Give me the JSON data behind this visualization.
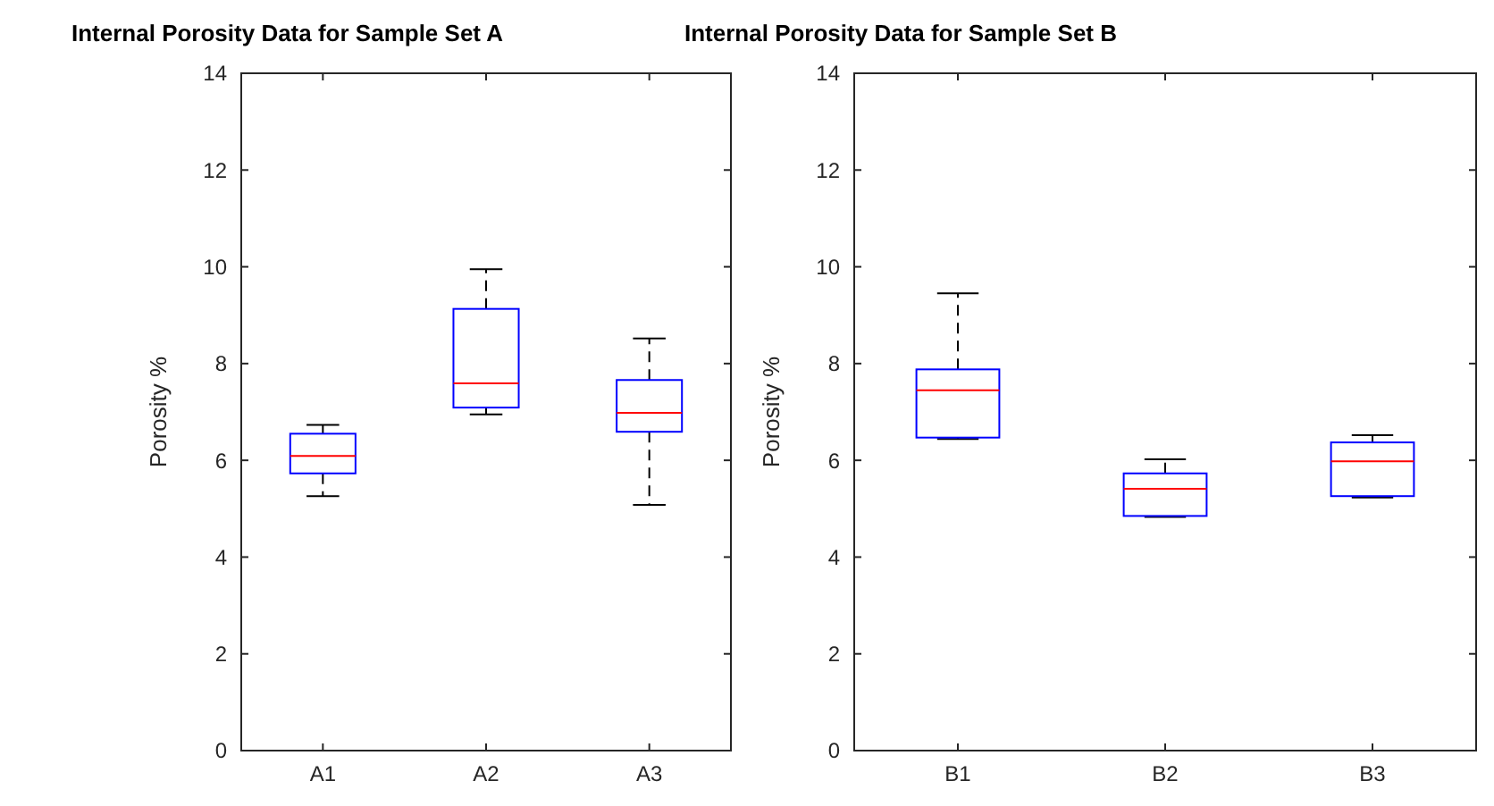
{
  "chart_data": [
    {
      "type": "box",
      "title": "Internal Porosity Data for Sample Set A",
      "ylabel": "Porosity %",
      "categories": [
        "A1",
        "A2",
        "A3"
      ],
      "ylim": [
        0,
        14
      ],
      "yticks": [
        0,
        2,
        4,
        6,
        8,
        10,
        12,
        14
      ],
      "grid": false,
      "boxes": [
        {
          "low": 5.26,
          "q1": 5.73,
          "median": 6.09,
          "q3": 6.55,
          "high": 6.73
        },
        {
          "low": 6.95,
          "q1": 7.09,
          "median": 7.59,
          "q3": 9.13,
          "high": 9.95
        },
        {
          "low": 5.08,
          "q1": 6.59,
          "median": 6.98,
          "q3": 7.66,
          "high": 8.52
        }
      ]
    },
    {
      "type": "box",
      "title": "Internal Porosity Data for Sample Set B",
      "ylabel": "Porosity %",
      "categories": [
        "B1",
        "B2",
        "B3"
      ],
      "ylim": [
        0,
        14
      ],
      "yticks": [
        0,
        2,
        4,
        6,
        8,
        10,
        12,
        14
      ],
      "grid": false,
      "boxes": [
        {
          "low": 6.44,
          "q1": 6.47,
          "median": 7.45,
          "q3": 7.88,
          "high": 9.45
        },
        {
          "low": 4.83,
          "q1": 4.85,
          "median": 5.41,
          "q3": 5.73,
          "high": 6.02
        },
        {
          "low": 5.23,
          "q1": 5.26,
          "median": 5.98,
          "q3": 6.37,
          "high": 6.52
        }
      ]
    }
  ]
}
